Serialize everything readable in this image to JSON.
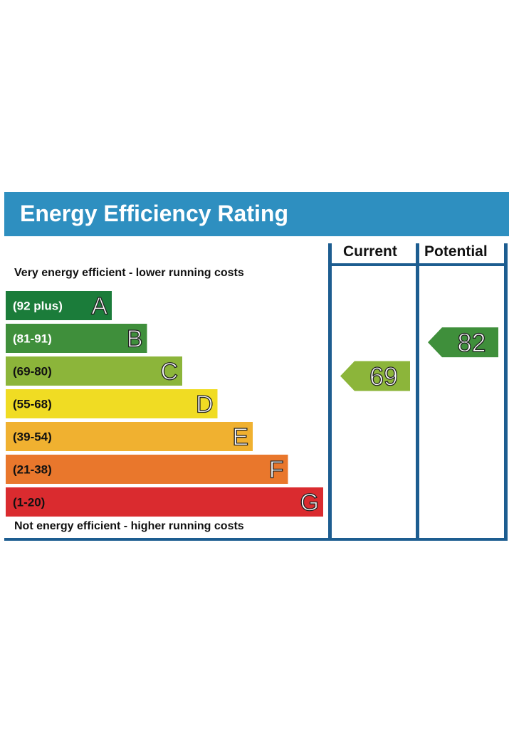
{
  "header": {
    "title": "Energy Efficiency Rating"
  },
  "columns": {
    "current": "Current",
    "potential": "Potential"
  },
  "captions": {
    "top": "Very energy efficient - lower running costs",
    "bottom": "Not energy efficient - higher running costs"
  },
  "colors": {
    "header": "#2e8fc0",
    "frame": "#1d5d90",
    "A": "#1b7c3a",
    "B": "#3f8f3b",
    "C": "#8cb53a",
    "D": "#f0dc23",
    "E": "#f0b130",
    "F": "#e9772c",
    "G": "#da2b2f"
  },
  "chart_data": {
    "type": "bar",
    "title": "Energy Efficiency Rating",
    "bands": [
      {
        "range": "(92 plus)",
        "letter": "A",
        "color": "#1b7c3a",
        "text_color": "#ffffff"
      },
      {
        "range": "(81-91)",
        "letter": "B",
        "color": "#3f8f3b",
        "text_color": "#ffffff"
      },
      {
        "range": "(69-80)",
        "letter": "C",
        "color": "#8cb53a",
        "text_color": "#111111"
      },
      {
        "range": "(55-68)",
        "letter": "D",
        "color": "#f0dc23",
        "text_color": "#111111"
      },
      {
        "range": "(39-54)",
        "letter": "E",
        "color": "#f0b130",
        "text_color": "#111111"
      },
      {
        "range": "(21-38)",
        "letter": "F",
        "color": "#e9772c",
        "text_color": "#111111"
      },
      {
        "range": "(1-20)",
        "letter": "G",
        "color": "#da2b2f",
        "text_color": "#111111"
      }
    ],
    "ratings": [
      {
        "column": "Current",
        "value": 69,
        "band": "C",
        "color": "#8cb53a"
      },
      {
        "column": "Potential",
        "value": 82,
        "band": "B",
        "color": "#3f8f3b"
      }
    ]
  }
}
